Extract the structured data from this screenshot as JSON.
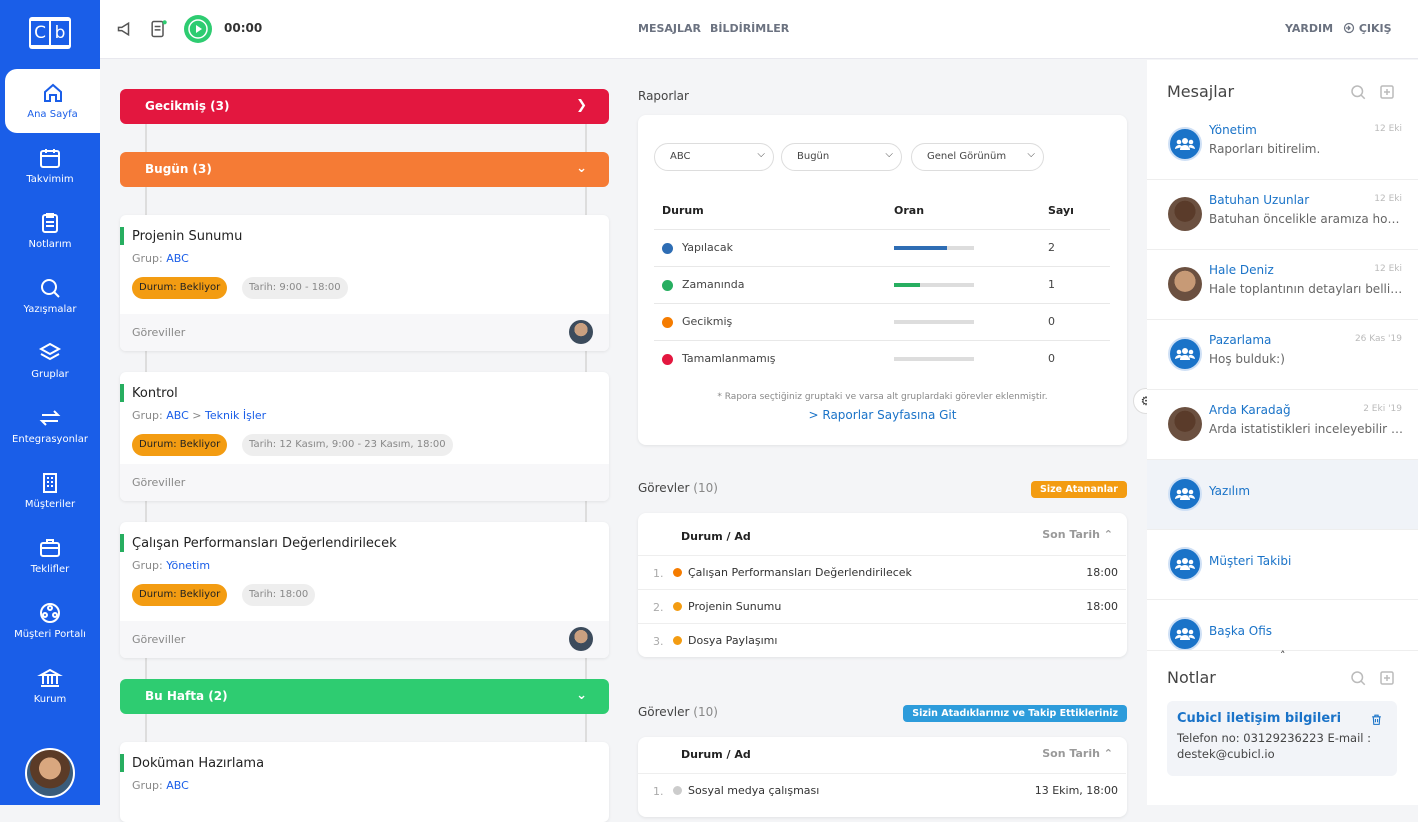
{
  "sidebar": {
    "logo_left": "C",
    "logo_right": "b",
    "items": [
      {
        "label": "Ana Sayfa",
        "icon": "home-icon"
      },
      {
        "label": "Takvimim",
        "icon": "calendar-icon"
      },
      {
        "label": "Notlarım",
        "icon": "clipboard-icon"
      },
      {
        "label": "Yazışmalar",
        "icon": "chat-search-icon"
      },
      {
        "label": "Gruplar",
        "icon": "layers-icon"
      },
      {
        "label": "Entegrasyonlar",
        "icon": "arrows-icon"
      },
      {
        "label": "Müşteriler",
        "icon": "building-icon"
      },
      {
        "label": "Teklifler",
        "icon": "briefcase-icon"
      },
      {
        "label": "Müşteri Portalı",
        "icon": "portal-icon"
      },
      {
        "label": "Kurum",
        "icon": "bank-icon"
      }
    ]
  },
  "topbar": {
    "timer": "00:00",
    "messages": "MESAJLAR",
    "notifications": "BİLDİRİMLER",
    "help": "YARDIM",
    "logout": "ÇIKIŞ"
  },
  "groups": {
    "late": {
      "label": "Gecikmiş (3)",
      "color": "#e3173f"
    },
    "today": {
      "label": "Bugün (3)",
      "color": "#f57b35"
    },
    "week": {
      "label": "Bu Hafta (2)",
      "color": "#2ecc71"
    }
  },
  "tasks": [
    {
      "title": "Projenin Sunumu",
      "group_label": "Grup:",
      "group": "ABC",
      "status": "Durum: Bekliyor",
      "date": "Tarih: 9:00 - 18:00",
      "footer": "Göreviller"
    },
    {
      "title": "Kontrol",
      "group_label": "Grup:",
      "group": "ABC",
      "subgroup_sep": ">",
      "subgroup": "Teknik İşler",
      "status": "Durum: Bekliyor",
      "date": "Tarih: 12 Kasım, 9:00 - 23 Kasım, 18:00",
      "footer": "Göreviller"
    },
    {
      "title": "Çalışan Performansları Değerlendirilecek",
      "group_label": "Grup:",
      "group": "Yönetim",
      "status": "Durum: Bekliyor",
      "date": "Tarih: 18:00",
      "footer": "Göreviller"
    },
    {
      "title": "Doküman Hazırlama",
      "group_label": "Grup:",
      "group": "ABC"
    }
  ],
  "reports": {
    "title": "Raporlar",
    "filters": [
      "ABC",
      "Bugün",
      "Genel Görünüm"
    ],
    "headers": {
      "status": "Durum",
      "rate": "Oran",
      "count": "Sayı"
    },
    "rows": [
      {
        "label": "Yapılacak",
        "color": "#2e6db4",
        "fraction": 0.66,
        "count": "2"
      },
      {
        "label": "Zamanında",
        "color": "#27ae60",
        "fraction": 0.33,
        "count": "1"
      },
      {
        "label": "Gecikmiş",
        "color": "#f57c00",
        "fraction": 0,
        "count": "0"
      },
      {
        "label": "Tamamlanmamış",
        "color": "#e3173f",
        "fraction": 0,
        "count": "0"
      }
    ],
    "note": "* Rapora seçtiğiniz gruptaki ve varsa alt gruplardaki görevler eklenmiştir.",
    "link": "> Raporlar Sayfasına Git"
  },
  "tasks_assigned": {
    "title": "Görevler",
    "count": "(10)",
    "tag": "Size Atananlar",
    "tag_color": "#f39c12",
    "col_name": "Durum / Ad",
    "col_due": "Son Tarih",
    "rows": [
      {
        "n": "1.",
        "title": "Çalışan Performansları Değerlendirilecek",
        "due": "18:00",
        "color": "#f57c00"
      },
      {
        "n": "2.",
        "title": "Projenin Sunumu",
        "due": "18:00",
        "color": "#f39c12"
      },
      {
        "n": "3.",
        "title": "Dosya Paylaşımı",
        "due": "",
        "color": "#f39c12"
      }
    ]
  },
  "tasks_followed": {
    "title": "Görevler",
    "count": "(10)",
    "tag": "Sizin Atadıklarınız ve Takip Ettikleriniz",
    "tag_color": "#2d9cdb",
    "col_name": "Durum / Ad",
    "col_due": "Son Tarih",
    "rows": [
      {
        "n": "1.",
        "title": "Sosyal medya çalışması",
        "due": "13 Ekim, 18:00",
        "color": "#ccc"
      }
    ]
  },
  "messages": {
    "title": "Mesajlar",
    "items": [
      {
        "name": "Yönetim",
        "time": "12 Eki",
        "text": "Raporları bitirelim.",
        "type": "group"
      },
      {
        "name": "Batuhan Uzunlar",
        "time": "12 Eki",
        "text": "Batuhan öncelikle aramıza hoş geldin",
        "type": "person"
      },
      {
        "name": "Hale Deniz",
        "time": "12 Eki",
        "text": "Hale toplantının detayları belli oldu mu?",
        "type": "person"
      },
      {
        "name": "Pazarlama",
        "time": "26 Kas '19",
        "text": "Hoş bulduk:)",
        "type": "group"
      },
      {
        "name": "Arda Karadağ",
        "time": "2 Eki '19",
        "text": "Arda istatistikleri inceleyebilir misin?",
        "type": "person"
      },
      {
        "name": "Yazılım",
        "time": "",
        "text": "",
        "type": "group"
      },
      {
        "name": "Müşteri Takibi",
        "time": "",
        "text": "",
        "type": "group"
      },
      {
        "name": "Başka Ofis",
        "time": "",
        "text": "",
        "type": "group"
      }
    ]
  },
  "notes": {
    "title": "Notlar",
    "item_title": "Cubicl iletişim bilgileri",
    "item_text": "Telefon no: 03129236223 E-mail : destek@cubicl.io"
  }
}
